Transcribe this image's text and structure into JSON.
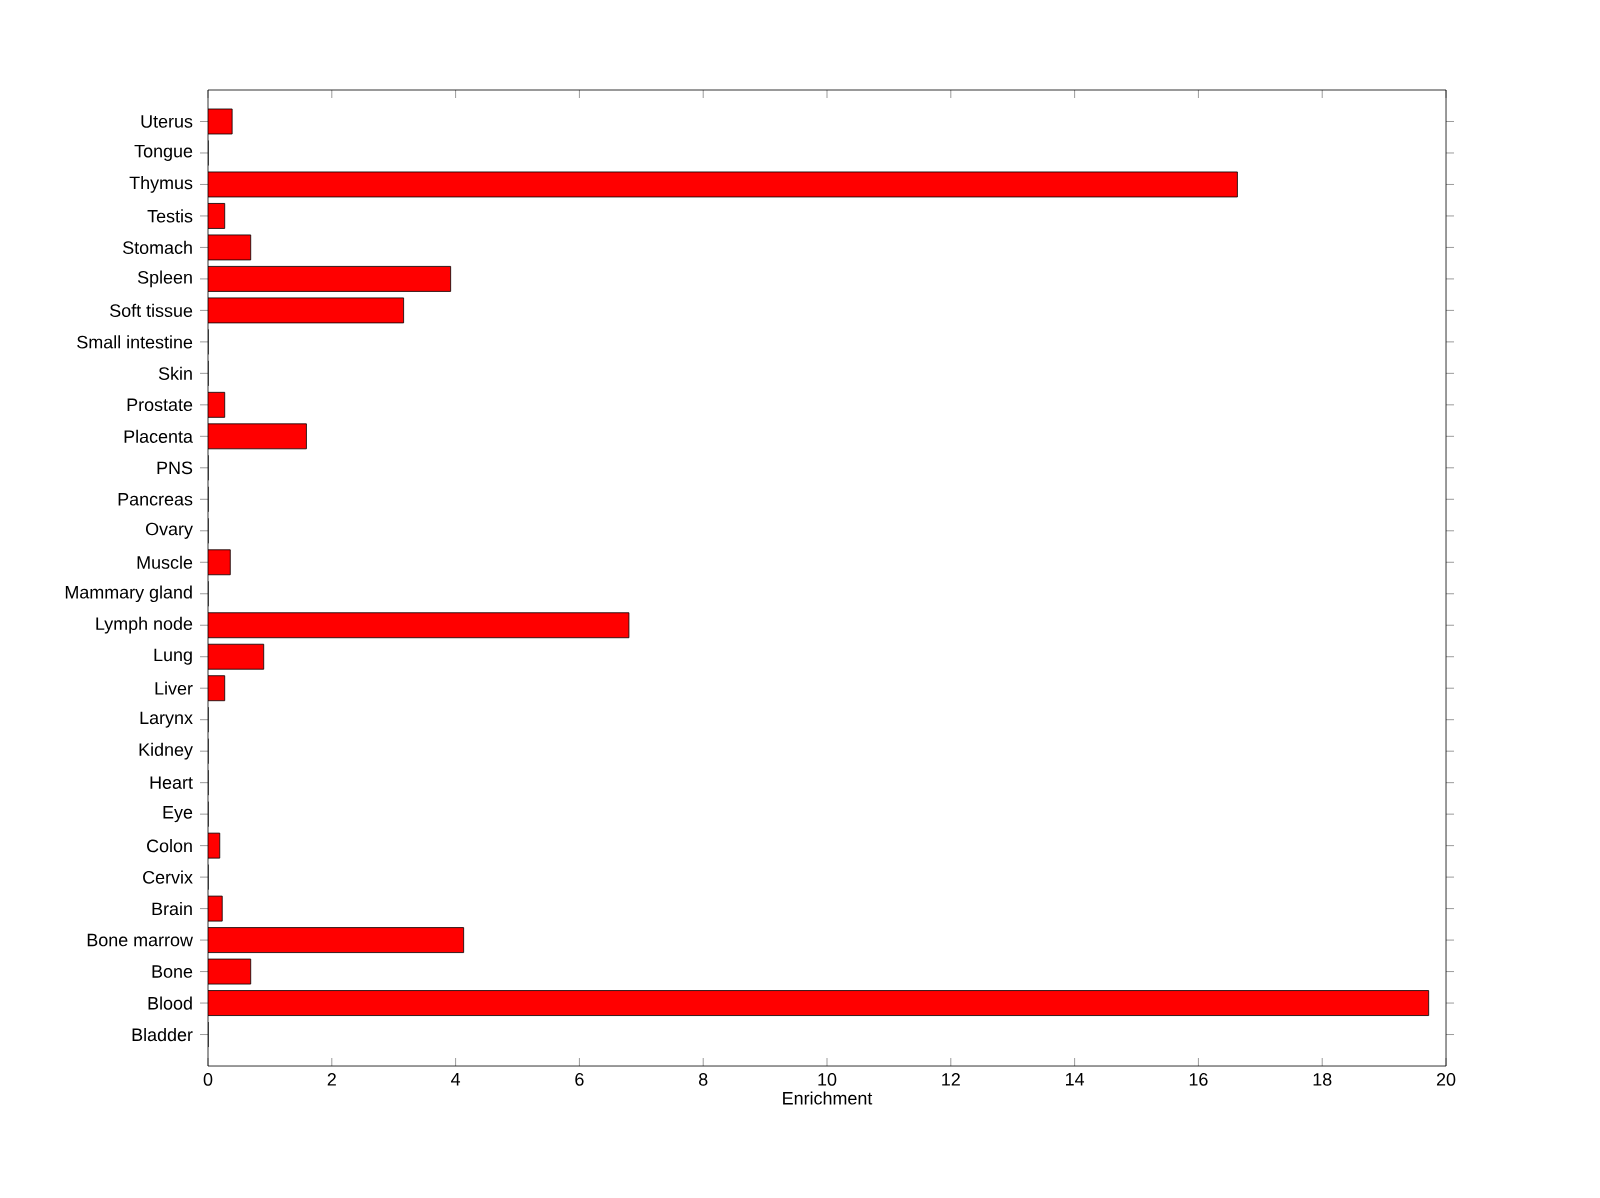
{
  "chart_data": {
    "type": "bar",
    "orientation": "horizontal",
    "xlabel": "Enrichment",
    "categories": [
      "Uterus",
      "Tongue",
      "Thymus",
      "Testis",
      "Stomach",
      "Spleen",
      "Soft tissue",
      "Small intestine",
      "Skin",
      "Prostate",
      "Placenta",
      "PNS",
      "Pancreas",
      "Ovary",
      "Muscle",
      "Mammary gland",
      "Lymph node",
      "Lung",
      "Liver",
      "Larynx",
      "Kidney",
      "Heart",
      "Eye",
      "Colon",
      "Cervix",
      "Brain",
      "Bone marrow",
      "Bone",
      "Blood",
      "Bladder"
    ],
    "values": [
      0.39,
      0,
      16.63,
      0.27,
      0.69,
      3.92,
      3.16,
      0,
      0,
      0.27,
      1.59,
      0,
      0,
      0,
      0.36,
      0,
      6.8,
      0.9,
      0.27,
      0,
      0,
      0,
      0,
      0.19,
      0,
      0.23,
      4.13,
      0.69,
      19.72,
      0
    ],
    "color": "#ff0000",
    "xlim": [
      0,
      20
    ],
    "xticks": [
      0,
      2,
      4,
      6,
      8,
      10,
      12,
      14,
      16,
      18,
      20
    ]
  }
}
